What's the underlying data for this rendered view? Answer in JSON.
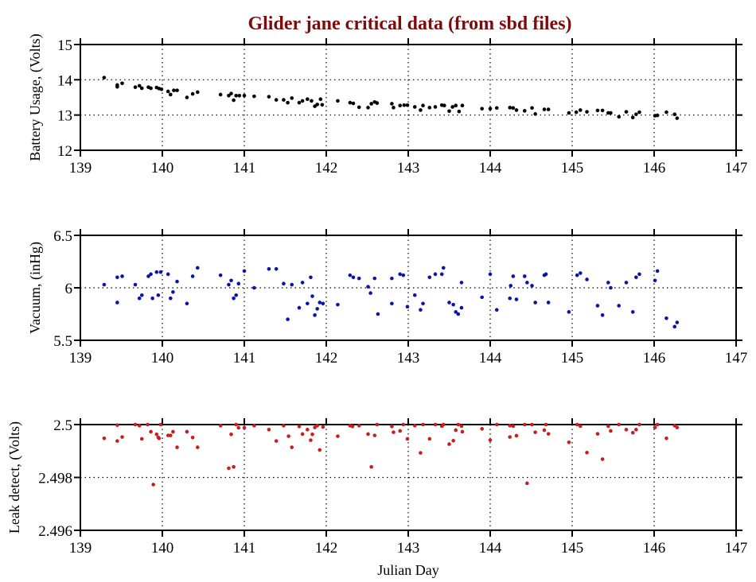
{
  "title": "Glider jane critical data (from sbd files)",
  "colors": {
    "title": "#7a0c0c",
    "battery": "#000000",
    "vacuum": "#0a14a8",
    "leak": "#c81e1e"
  },
  "chart_data": [
    {
      "type": "scatter",
      "name": "battery",
      "ylabel": "Battery Usage, (Volts)",
      "xlabel": "",
      "xlim": [
        139,
        147
      ],
      "ylim": [
        12,
        15
      ],
      "xticks": [
        "139",
        "140",
        "141",
        "142",
        "143",
        "144",
        "145",
        "146",
        "147"
      ],
      "yticks": [
        "12",
        "13",
        "14",
        "15"
      ],
      "ytick_values": [
        12,
        13,
        14,
        15
      ],
      "grid": true,
      "points": [
        [
          139.29,
          14.06
        ],
        [
          139.45,
          13.85
        ],
        [
          139.45,
          13.8
        ],
        [
          139.51,
          13.9
        ],
        [
          139.67,
          13.79
        ],
        [
          139.72,
          13.83
        ],
        [
          139.75,
          13.76
        ],
        [
          139.83,
          13.79
        ],
        [
          139.86,
          13.76
        ],
        [
          139.93,
          13.78
        ],
        [
          139.96,
          13.75
        ],
        [
          139.99,
          13.73
        ],
        [
          140.07,
          13.67
        ],
        [
          140.1,
          13.58
        ],
        [
          140.14,
          13.7
        ],
        [
          140.18,
          13.7
        ],
        [
          140.3,
          13.5
        ],
        [
          140.37,
          13.6
        ],
        [
          140.43,
          13.65
        ],
        [
          140.71,
          13.58
        ],
        [
          140.81,
          13.55
        ],
        [
          140.84,
          13.61
        ],
        [
          140.87,
          13.42
        ],
        [
          140.9,
          13.55
        ],
        [
          140.94,
          13.55
        ],
        [
          141.0,
          13.55
        ],
        [
          141.12,
          13.53
        ],
        [
          141.3,
          13.52
        ],
        [
          141.39,
          13.43
        ],
        [
          141.48,
          13.43
        ],
        [
          141.53,
          13.35
        ],
        [
          141.58,
          13.48
        ],
        [
          141.67,
          13.35
        ],
        [
          141.71,
          13.4
        ],
        [
          141.77,
          13.45
        ],
        [
          141.82,
          13.4
        ],
        [
          141.86,
          13.25
        ],
        [
          141.89,
          13.3
        ],
        [
          141.93,
          13.45
        ],
        [
          141.95,
          13.29
        ],
        [
          142.14,
          13.4
        ],
        [
          142.29,
          13.35
        ],
        [
          142.33,
          13.33
        ],
        [
          142.4,
          13.22
        ],
        [
          142.51,
          13.21
        ],
        [
          142.55,
          13.32
        ],
        [
          142.59,
          13.37
        ],
        [
          142.62,
          13.34
        ],
        [
          142.8,
          13.32
        ],
        [
          142.82,
          13.21
        ],
        [
          142.9,
          13.27
        ],
        [
          142.95,
          13.28
        ],
        [
          142.99,
          13.28
        ],
        [
          143.08,
          13.23
        ],
        [
          143.15,
          13.14
        ],
        [
          143.18,
          13.27
        ],
        [
          143.26,
          13.21
        ],
        [
          143.33,
          13.23
        ],
        [
          143.41,
          13.28
        ],
        [
          143.44,
          13.27
        ],
        [
          143.5,
          13.11
        ],
        [
          143.54,
          13.23
        ],
        [
          143.58,
          13.27
        ],
        [
          143.62,
          13.1
        ],
        [
          143.66,
          13.27
        ],
        [
          143.9,
          13.18
        ],
        [
          144.0,
          13.18
        ],
        [
          144.08,
          13.2
        ],
        [
          144.24,
          13.21
        ],
        [
          144.28,
          13.2
        ],
        [
          144.32,
          13.14
        ],
        [
          144.42,
          13.12
        ],
        [
          144.51,
          13.2
        ],
        [
          144.55,
          13.03
        ],
        [
          144.66,
          13.16
        ],
        [
          144.71,
          13.16
        ],
        [
          144.96,
          13.06
        ],
        [
          145.05,
          13.08
        ],
        [
          145.1,
          13.14
        ],
        [
          145.18,
          13.09
        ],
        [
          145.31,
          13.13
        ],
        [
          145.37,
          13.13
        ],
        [
          145.44,
          13.06
        ],
        [
          145.47,
          13.06
        ],
        [
          145.57,
          12.95
        ],
        [
          145.66,
          13.09
        ],
        [
          145.74,
          12.93
        ],
        [
          145.78,
          13.02
        ],
        [
          145.82,
          13.08
        ],
        [
          146.01,
          12.98
        ],
        [
          146.04,
          12.99
        ],
        [
          146.15,
          13.08
        ],
        [
          146.25,
          13.02
        ],
        [
          146.28,
          12.91
        ]
      ]
    },
    {
      "type": "scatter",
      "name": "vacuum",
      "ylabel": "Vacuum, (inHg)",
      "xlabel": "",
      "xlim": [
        139,
        147
      ],
      "ylim": [
        5.5,
        6.5
      ],
      "xticks": [
        "139",
        "140",
        "141",
        "142",
        "143",
        "144",
        "145",
        "146",
        "147"
      ],
      "yticks": [
        "5.5",
        "6",
        "6.5"
      ],
      "ytick_values": [
        5.5,
        6,
        6.5
      ],
      "grid": true,
      "points": [
        [
          139.29,
          6.03
        ],
        [
          139.45,
          6.1
        ],
        [
          139.45,
          5.86
        ],
        [
          139.51,
          6.11
        ],
        [
          139.67,
          6.03
        ],
        [
          139.72,
          5.9
        ],
        [
          139.75,
          5.93
        ],
        [
          139.83,
          6.11
        ],
        [
          139.86,
          6.13
        ],
        [
          139.88,
          5.9
        ],
        [
          139.93,
          6.15
        ],
        [
          139.95,
          5.93
        ],
        [
          139.98,
          6.15
        ],
        [
          140.07,
          6.13
        ],
        [
          140.1,
          5.9
        ],
        [
          140.13,
          5.96
        ],
        [
          140.18,
          6.06
        ],
        [
          140.3,
          5.85
        ],
        [
          140.37,
          6.11
        ],
        [
          140.43,
          6.19
        ],
        [
          140.71,
          6.12
        ],
        [
          140.81,
          6.03
        ],
        [
          140.84,
          6.07
        ],
        [
          140.87,
          5.9
        ],
        [
          140.9,
          5.93
        ],
        [
          140.93,
          6.04
        ],
        [
          141.0,
          6.16
        ],
        [
          141.12,
          6.0
        ],
        [
          141.3,
          6.18
        ],
        [
          141.39,
          6.18
        ],
        [
          141.48,
          6.04
        ],
        [
          141.53,
          5.7
        ],
        [
          141.58,
          6.03
        ],
        [
          141.67,
          5.81
        ],
        [
          141.71,
          6.05
        ],
        [
          141.77,
          5.85
        ],
        [
          141.81,
          6.1
        ],
        [
          141.83,
          5.92
        ],
        [
          141.86,
          5.74
        ],
        [
          141.89,
          5.8
        ],
        [
          141.92,
          5.86
        ],
        [
          141.96,
          5.85
        ],
        [
          142.14,
          5.84
        ],
        [
          142.29,
          6.12
        ],
        [
          142.33,
          6.1
        ],
        [
          142.4,
          6.09
        ],
        [
          142.51,
          6.01
        ],
        [
          142.54,
          5.95
        ],
        [
          142.59,
          6.09
        ],
        [
          142.63,
          5.75
        ],
        [
          142.8,
          6.09
        ],
        [
          142.8,
          5.85
        ],
        [
          142.9,
          6.13
        ],
        [
          142.94,
          6.12
        ],
        [
          142.99,
          5.82
        ],
        [
          143.08,
          5.93
        ],
        [
          143.15,
          5.79
        ],
        [
          143.18,
          5.85
        ],
        [
          143.26,
          6.1
        ],
        [
          143.33,
          6.13
        ],
        [
          143.41,
          6.13
        ],
        [
          143.43,
          6.19
        ],
        [
          143.5,
          5.86
        ],
        [
          143.55,
          5.84
        ],
        [
          143.58,
          5.77
        ],
        [
          143.61,
          5.75
        ],
        [
          143.65,
          6.05
        ],
        [
          143.65,
          5.81
        ],
        [
          143.9,
          5.91
        ],
        [
          144.0,
          6.13
        ],
        [
          144.08,
          5.79
        ],
        [
          144.24,
          5.9
        ],
        [
          144.25,
          6.02
        ],
        [
          144.28,
          6.11
        ],
        [
          144.32,
          5.89
        ],
        [
          144.42,
          6.11
        ],
        [
          144.45,
          6.05
        ],
        [
          144.51,
          6.02
        ],
        [
          144.55,
          5.86
        ],
        [
          144.66,
          6.12
        ],
        [
          144.68,
          6.13
        ],
        [
          144.71,
          5.86
        ],
        [
          144.96,
          5.77
        ],
        [
          145.06,
          6.12
        ],
        [
          145.1,
          6.14
        ],
        [
          145.18,
          6.08
        ],
        [
          145.31,
          5.83
        ],
        [
          145.37,
          5.74
        ],
        [
          145.44,
          6.05
        ],
        [
          145.47,
          6.0
        ],
        [
          145.57,
          5.83
        ],
        [
          145.66,
          6.05
        ],
        [
          145.74,
          5.77
        ],
        [
          145.78,
          6.1
        ],
        [
          145.82,
          6.13
        ],
        [
          146.01,
          6.07
        ],
        [
          146.04,
          6.16
        ],
        [
          146.15,
          5.71
        ],
        [
          146.25,
          5.63
        ],
        [
          146.28,
          5.67
        ]
      ]
    },
    {
      "type": "scatter",
      "name": "leak",
      "ylabel": "Leak detect, (Volts)",
      "xlabel": "Julian Day",
      "xlim": [
        139,
        147
      ],
      "ylim": [
        2.496,
        2.5
      ],
      "xticks": [
        "139",
        "140",
        "141",
        "142",
        "143",
        "144",
        "145",
        "146",
        "147"
      ],
      "yticks": [
        "2.496",
        "2.498",
        "2.5"
      ],
      "ytick_values": [
        2.496,
        2.498,
        2.5
      ],
      "grid": true,
      "points": [
        [
          139.29,
          2.49948
        ],
        [
          139.45,
          2.49998
        ],
        [
          139.45,
          2.49938
        ],
        [
          139.51,
          2.49953
        ],
        [
          139.67,
          2.5
        ],
        [
          139.72,
          2.49996
        ],
        [
          139.75,
          2.49946
        ],
        [
          139.82,
          2.5
        ],
        [
          139.86,
          2.49973
        ],
        [
          139.89,
          2.49773
        ],
        [
          139.93,
          2.49963
        ],
        [
          139.95,
          2.49951
        ],
        [
          139.96,
          2.49948
        ],
        [
          139.98,
          2.5
        ],
        [
          140.07,
          2.49959
        ],
        [
          140.1,
          2.49959
        ],
        [
          140.13,
          2.49973
        ],
        [
          140.18,
          2.49914
        ],
        [
          140.3,
          2.49973
        ],
        [
          140.37,
          2.49951
        ],
        [
          140.43,
          2.49914
        ],
        [
          140.71,
          2.49996
        ],
        [
          140.81,
          2.49835
        ],
        [
          140.84,
          2.49963
        ],
        [
          140.87,
          2.4984
        ],
        [
          140.9,
          2.5
        ],
        [
          140.93,
          2.49988
        ],
        [
          141.0,
          2.49988
        ],
        [
          141.12,
          2.49996
        ],
        [
          141.3,
          2.49981
        ],
        [
          141.39,
          2.49938
        ],
        [
          141.48,
          2.49996
        ],
        [
          141.54,
          2.49956
        ],
        [
          141.58,
          2.49914
        ],
        [
          141.67,
          2.49993
        ],
        [
          141.71,
          2.49964
        ],
        [
          141.77,
          2.49981
        ],
        [
          141.81,
          2.49941
        ],
        [
          141.83,
          2.49963
        ],
        [
          141.86,
          2.49989
        ],
        [
          141.89,
          2.49996
        ],
        [
          141.92,
          2.49904
        ],
        [
          141.96,
          2.49991
        ],
        [
          142.14,
          2.49956
        ],
        [
          142.29,
          2.49996
        ],
        [
          142.32,
          2.49993
        ],
        [
          142.4,
          2.49996
        ],
        [
          142.51,
          2.49964
        ],
        [
          142.55,
          2.4984
        ],
        [
          142.59,
          2.49959
        ],
        [
          142.62,
          2.5
        ],
        [
          142.8,
          2.49993
        ],
        [
          142.82,
          2.49971
        ],
        [
          142.9,
          2.49976
        ],
        [
          142.94,
          2.5
        ],
        [
          142.99,
          2.49946
        ],
        [
          143.08,
          2.49996
        ],
        [
          143.15,
          2.49893
        ],
        [
          143.18,
          2.5
        ],
        [
          143.26,
          2.49946
        ],
        [
          143.33,
          2.5
        ],
        [
          143.41,
          2.49994
        ],
        [
          143.43,
          2.5
        ],
        [
          143.5,
          2.49926
        ],
        [
          143.55,
          2.49939
        ],
        [
          143.58,
          2.49979
        ],
        [
          143.61,
          2.5
        ],
        [
          143.65,
          2.49994
        ],
        [
          143.66,
          2.49973
        ],
        [
          143.9,
          2.49984
        ],
        [
          144.0,
          2.49941
        ],
        [
          144.08,
          2.5
        ],
        [
          144.24,
          2.49996
        ],
        [
          144.24,
          2.49953
        ],
        [
          144.28,
          2.49994
        ],
        [
          144.32,
          2.49958
        ],
        [
          144.42,
          2.5
        ],
        [
          144.45,
          2.49778
        ],
        [
          144.51,
          2.5
        ],
        [
          144.55,
          2.49971
        ],
        [
          144.66,
          2.49979
        ],
        [
          144.68,
          2.5
        ],
        [
          144.71,
          2.49965
        ],
        [
          144.96,
          2.49933
        ],
        [
          145.06,
          2.5
        ],
        [
          145.1,
          2.49994
        ],
        [
          145.18,
          2.49894
        ],
        [
          145.31,
          2.49965
        ],
        [
          145.37,
          2.49869
        ],
        [
          145.44,
          2.49994
        ],
        [
          145.47,
          2.49976
        ],
        [
          145.57,
          2.5
        ],
        [
          145.66,
          2.49981
        ],
        [
          145.74,
          2.49969
        ],
        [
          145.78,
          2.49981
        ],
        [
          145.82,
          2.5
        ],
        [
          146.01,
          2.49989
        ],
        [
          146.04,
          2.5
        ],
        [
          146.15,
          2.49948
        ],
        [
          146.25,
          2.49996
        ],
        [
          146.28,
          2.49989
        ]
      ]
    }
  ]
}
